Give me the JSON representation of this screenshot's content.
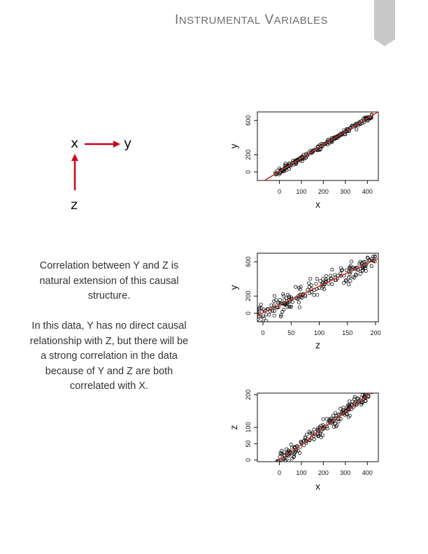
{
  "header": {
    "title_cap1": "I",
    "title_rest1": "NSTRUMENTAL",
    "title_cap2": "V",
    "title_rest2": "ARIABLES"
  },
  "diagram": {
    "node_x": "x",
    "node_y": "y",
    "node_z": "z",
    "arrow_color": "#d0021b"
  },
  "text": {
    "paragraph1": "Correlation between Y and Z is natural extension of this causal structure.",
    "paragraph2": "In this data, Y has no direct causal relationship with Z, but there will be a strong correlation in the data because of Y and Z are both correlated with X."
  },
  "chart_data": [
    {
      "type": "scatter",
      "xlabel": "x",
      "ylabel": "y",
      "x_ticks": [
        "0",
        "100",
        "200",
        "300",
        "400"
      ],
      "y_ticks": [
        "0",
        "200",
        "600"
      ],
      "xlim": [
        -100,
        450
      ],
      "ylim": [
        -100,
        700
      ],
      "fit_line": {
        "color": "#c0392b",
        "intercept": 5,
        "slope": 1.55
      },
      "noise": 15,
      "n_points": 200
    },
    {
      "type": "scatter",
      "xlabel": "z",
      "ylabel": "y",
      "x_ticks": [
        "0",
        "50",
        "100",
        "150",
        "200"
      ],
      "y_ticks": [
        "0",
        "200",
        "600"
      ],
      "xlim": [
        -10,
        205
      ],
      "ylim": [
        -100,
        700
      ],
      "fit_line": {
        "color": "#c0392b",
        "intercept": 5,
        "slope": 3.1
      },
      "noise": 55,
      "n_points": 200
    },
    {
      "type": "scatter",
      "xlabel": "x",
      "ylabel": "z",
      "x_ticks": [
        "0",
        "100",
        "200",
        "300",
        "400"
      ],
      "y_ticks": [
        "0",
        "50",
        "100",
        "200"
      ],
      "xlim": [
        -100,
        450
      ],
      "ylim": [
        -5,
        205
      ],
      "fit_line": {
        "color": "#c0392b",
        "intercept": -2,
        "slope": 0.5
      },
      "noise": 10,
      "n_points": 200
    }
  ]
}
